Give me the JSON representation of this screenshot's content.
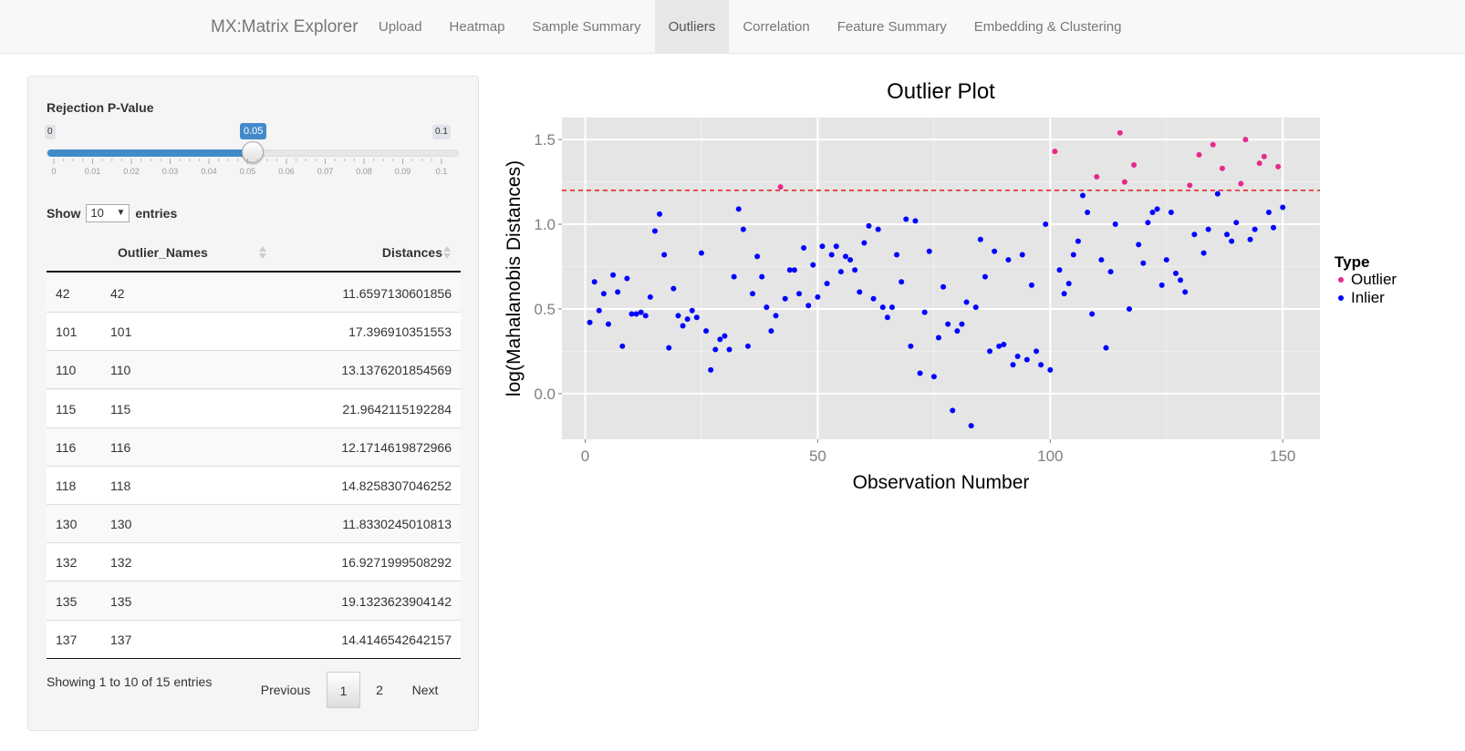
{
  "navbar": {
    "brand": "MX:Matrix Explorer",
    "tabs": [
      {
        "label": "Upload",
        "active": false
      },
      {
        "label": "Heatmap",
        "active": false
      },
      {
        "label": "Sample Summary",
        "active": false
      },
      {
        "label": "Outliers",
        "active": true
      },
      {
        "label": "Correlation",
        "active": false
      },
      {
        "label": "Feature Summary",
        "active": false
      },
      {
        "label": "Embedding & Clustering",
        "active": false
      }
    ]
  },
  "sidebar": {
    "slider": {
      "label": "Rejection P-Value",
      "min": "0",
      "max": "0.1",
      "value": "0.05",
      "value_fraction": 0.5,
      "ticks": [
        "0",
        "0.01",
        "0.02",
        "0.03",
        "0.04",
        "0.05",
        "0.06",
        "0.07",
        "0.08",
        "0.09",
        "0.1"
      ]
    },
    "show_entries": {
      "prefix": "Show",
      "value": "10",
      "suffix": "entries"
    },
    "table": {
      "columns": [
        "",
        "Outlier_Names",
        "Distances"
      ],
      "rows": [
        [
          "42",
          "42",
          "11.6597130601856"
        ],
        [
          "101",
          "101",
          "17.396910351553"
        ],
        [
          "110",
          "110",
          "13.1376201854569"
        ],
        [
          "115",
          "115",
          "21.9642115192284"
        ],
        [
          "116",
          "116",
          "12.1714619872966"
        ],
        [
          "118",
          "118",
          "14.8258307046252"
        ],
        [
          "130",
          "130",
          "11.8330245010813"
        ],
        [
          "132",
          "132",
          "16.9271999508292"
        ],
        [
          "135",
          "135",
          "19.1323623904142"
        ],
        [
          "137",
          "137",
          "14.4146542642157"
        ]
      ]
    },
    "info": "Showing 1 to 10 of 15 entries",
    "pagination": {
      "previous": "Previous",
      "pages": [
        "1",
        "2"
      ],
      "current": "1",
      "next": "Next"
    }
  },
  "chart_data": {
    "type": "scatter",
    "title": "Outlier Plot",
    "xlabel": "Observation Number",
    "ylabel": "log(Mahalanobis Distances)",
    "xlim": [
      -5,
      158
    ],
    "ylim": [
      -0.27,
      1.63
    ],
    "xticks": [
      "0",
      "50",
      "100",
      "150"
    ],
    "yticks": [
      "0.0",
      "0.5",
      "1.0",
      "1.5"
    ],
    "threshold": 1.2,
    "threshold_color": "#e41a1c",
    "grid": true,
    "legend_title": "Type",
    "legend_position": "right",
    "series": [
      {
        "name": "Outlier",
        "color": "#e7298a",
        "x": [
          42,
          101,
          110,
          115,
          116,
          118,
          130,
          132,
          135,
          137,
          141,
          142,
          145,
          146,
          149
        ],
        "y": [
          1.22,
          1.43,
          1.28,
          1.54,
          1.25,
          1.35,
          1.23,
          1.41,
          1.47,
          1.33,
          1.24,
          1.5,
          1.36,
          1.4,
          1.34
        ]
      },
      {
        "name": "Inlier",
        "color": "#0000ff",
        "x": [
          1,
          2,
          3,
          4,
          5,
          6,
          7,
          8,
          9,
          10,
          11,
          12,
          13,
          14,
          15,
          16,
          17,
          18,
          19,
          20,
          21,
          22,
          23,
          24,
          25,
          26,
          27,
          28,
          29,
          30,
          31,
          32,
          33,
          34,
          35,
          36,
          37,
          38,
          39,
          40,
          41,
          43,
          44,
          45,
          46,
          47,
          48,
          49,
          50,
          51,
          52,
          53,
          54,
          55,
          56,
          57,
          58,
          59,
          60,
          61,
          62,
          63,
          64,
          65,
          66,
          67,
          68,
          69,
          70,
          71,
          72,
          73,
          74,
          75,
          76,
          77,
          78,
          79,
          80,
          81,
          82,
          83,
          84,
          85,
          86,
          87,
          88,
          89,
          90,
          91,
          92,
          93,
          94,
          95,
          96,
          97,
          98,
          99,
          100,
          102,
          103,
          104,
          105,
          106,
          107,
          108,
          109,
          111,
          112,
          113,
          114,
          117,
          119,
          120,
          121,
          122,
          123,
          124,
          125,
          126,
          127,
          128,
          129,
          131,
          133,
          134,
          136,
          138,
          139,
          140,
          143,
          144,
          147,
          148,
          150
        ],
        "y": [
          0.42,
          0.66,
          0.49,
          0.59,
          0.41,
          0.7,
          0.6,
          0.28,
          0.68,
          0.47,
          0.47,
          0.48,
          0.46,
          0.57,
          0.96,
          1.06,
          0.82,
          0.27,
          0.62,
          0.46,
          0.4,
          0.44,
          0.49,
          0.45,
          0.83,
          0.37,
          0.14,
          0.26,
          0.32,
          0.34,
          0.26,
          0.69,
          1.09,
          0.97,
          0.28,
          0.59,
          0.81,
          0.69,
          0.51,
          0.37,
          0.46,
          0.56,
          0.73,
          0.73,
          0.59,
          0.86,
          0.52,
          0.76,
          0.57,
          0.87,
          0.65,
          0.82,
          0.87,
          0.72,
          0.81,
          0.79,
          0.73,
          0.6,
          0.89,
          0.99,
          0.56,
          0.97,
          0.51,
          0.45,
          0.51,
          0.82,
          0.66,
          1.03,
          0.28,
          1.02,
          0.12,
          0.48,
          0.84,
          0.1,
          0.33,
          0.63,
          0.41,
          -0.1,
          0.37,
          0.41,
          0.54,
          -0.19,
          0.51,
          0.91,
          0.69,
          0.25,
          0.84,
          0.28,
          0.29,
          0.79,
          0.17,
          0.22,
          0.82,
          0.2,
          0.64,
          0.25,
          0.17,
          1.0,
          0.14,
          0.73,
          0.59,
          0.65,
          0.82,
          0.9,
          1.17,
          1.07,
          0.47,
          0.79,
          0.27,
          0.72,
          1.0,
          0.5,
          0.88,
          0.77,
          1.01,
          1.07,
          1.09,
          0.64,
          0.79,
          1.07,
          0.71,
          0.67,
          0.6,
          0.94,
          0.83,
          0.97,
          1.18,
          0.94,
          0.9,
          1.01,
          0.91,
          0.97,
          1.07,
          0.98,
          1.1
        ]
      }
    ]
  }
}
